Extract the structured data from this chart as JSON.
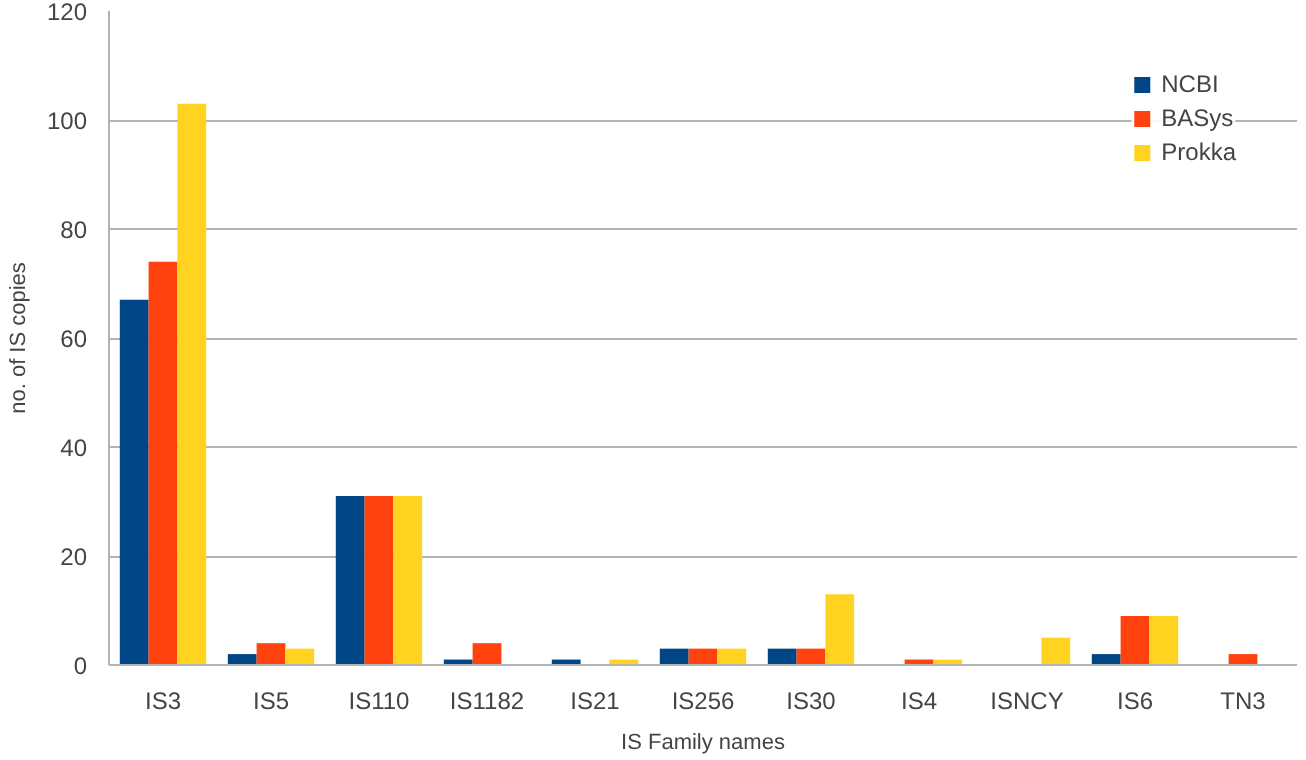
{
  "chart_data": {
    "type": "bar",
    "xlabel": "IS Family names",
    "ylabel": "no. of IS copies",
    "categories": [
      "IS3",
      "IS5",
      "IS110",
      "IS1182",
      "IS21",
      "IS256",
      "IS30",
      "IS4",
      "ISNCY",
      "IS6",
      "TN3"
    ],
    "series": [
      {
        "name": "NCBI",
        "color": "#004586",
        "values": [
          67,
          2,
          31,
          1,
          1,
          3,
          3,
          0,
          0,
          2,
          0
        ]
      },
      {
        "name": "BASys",
        "color": "#ff420e",
        "values": [
          74,
          4,
          31,
          4,
          0,
          3,
          3,
          1,
          0,
          9,
          2
        ]
      },
      {
        "name": "Prokka",
        "color": "#ffd320",
        "values": [
          103,
          3,
          31,
          0,
          1,
          3,
          13,
          1,
          5,
          9,
          0
        ]
      }
    ],
    "ylim": [
      0,
      120
    ],
    "yticks": [
      0,
      20,
      40,
      60,
      80,
      100,
      120
    ],
    "grid": "y",
    "legend": "top right"
  }
}
